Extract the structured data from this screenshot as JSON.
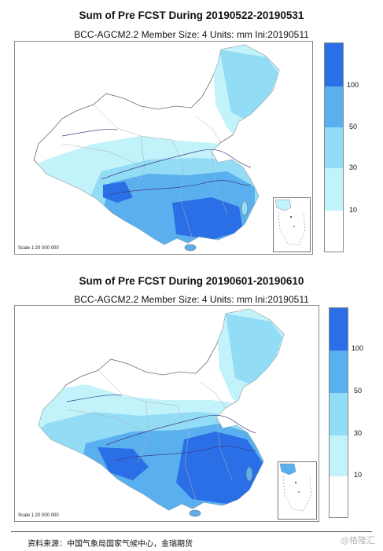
{
  "panels": [
    {
      "title": "Sum of Pre FCST During 20190522-20190531",
      "subtitle": "BCC-AGCM2.2   Member Size: 4   Units: mm   Ini:20190511",
      "scale": "Scale 1:20 000 000"
    },
    {
      "title": "Sum of Pre FCST During 20190601-20190610",
      "subtitle": "BCC-AGCM2.2   Member Size: 4   Units: mm   Ini:20190511",
      "scale": "Scale 1:20 000 000"
    }
  ],
  "legend": {
    "levels": [
      "10",
      "30",
      "50",
      "100"
    ],
    "colors": [
      "#ffffff",
      "#c2f2fa",
      "#93dcf5",
      "#5ab0ef",
      "#2b6fe6"
    ]
  },
  "source": "资料来源：中国气象局国家气候中心，金瑞期货",
  "watermark": "@格隆汇"
}
